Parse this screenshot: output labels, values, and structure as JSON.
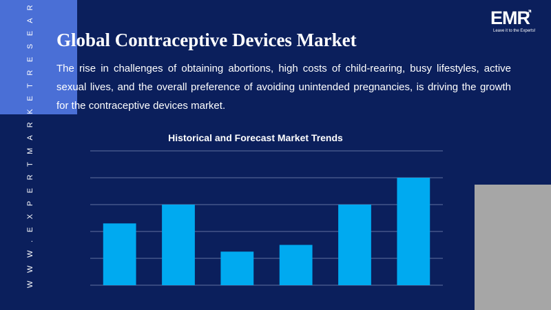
{
  "side_url": "W W W . E X P E R T M A R K E T R E S E A R C H . C O M",
  "title": "Global Contraceptive Devices Market",
  "description": "The rise in challenges of obtaining abortions, high costs of child-rearing, busy lifestyles, active sexual lives, and the overall preference of avoiding unintended pregnancies, is driving the growth for the contraceptive devices market.",
  "logo": {
    "text": "EMR",
    "tagline": "Leave it to the Experts!"
  },
  "colors": {
    "background": "#0b1f5c",
    "bar": "#00aaf0",
    "accent": "#4a6fd6",
    "gray": "#a6a6a6"
  },
  "chart_data": {
    "type": "bar",
    "title": "Historical and Forecast Market Trends",
    "xlabel": "",
    "ylabel": "",
    "categories": [
      "",
      "",
      "",
      "",
      "",
      ""
    ],
    "values": [
      2.3,
      3.0,
      1.25,
      1.5,
      3.0,
      4.0
    ],
    "ylim": [
      0,
      5
    ],
    "grid": true,
    "legend": "none"
  }
}
